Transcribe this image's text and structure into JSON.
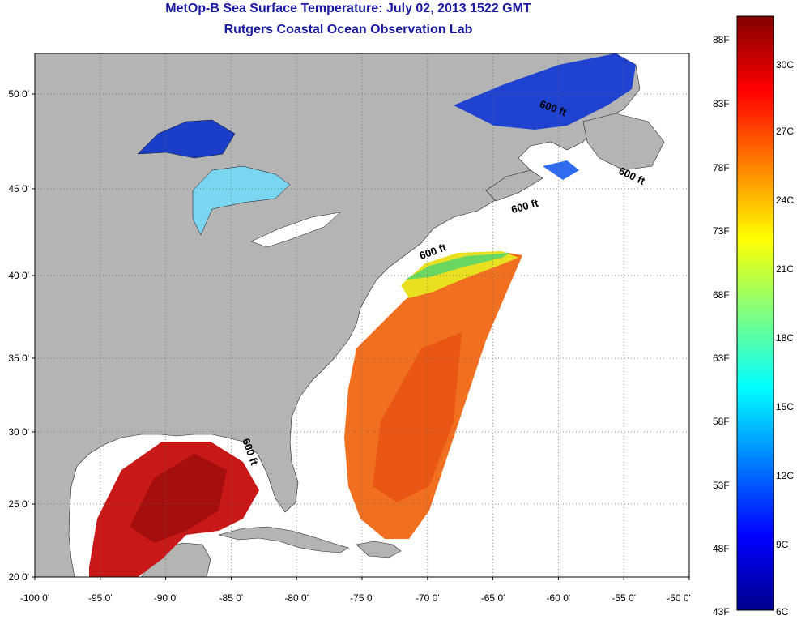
{
  "header": {
    "title": "MetOp-B Sea Surface Temperature:  July 02, 2013 1522 GMT",
    "subtitle": "Rutgers Coastal Ocean Observation Lab"
  },
  "map": {
    "lon_range": [
      -100,
      -50
    ],
    "lat_range": [
      20,
      52.5
    ],
    "lon_ticks": [
      "-100 0'",
      "-95 0'",
      "-90 0'",
      "-85 0'",
      "-80 0'",
      "-75 0'",
      "-70 0'",
      "-65 0'",
      "-60 0'",
      "-55 0'",
      "-50 0'"
    ],
    "lat_ticks": [
      "20 0'",
      "25 0'",
      "30 0'",
      "35 0'",
      "40 0'",
      "45 0'",
      "50 0'"
    ],
    "contour_labels": [
      {
        "text": "600 ft",
        "lon": -60.5,
        "lat": 48.9
      },
      {
        "text": "600 ft",
        "lon": -54.5,
        "lat": 44.7
      },
      {
        "text": "600 ft",
        "lon": -62.5,
        "lat": 42.8
      },
      {
        "text": "600 ft",
        "lon": -69.5,
        "lat": 40.0
      },
      {
        "text": "600 ft",
        "lon": -83.8,
        "lat": 27.7
      }
    ],
    "colors": {
      "land": "#b4b4b4",
      "ocean_nodata": "#ffffff",
      "grid": "#666666"
    }
  },
  "colorbar": {
    "fahrenheit": [
      "88F",
      "83F",
      "78F",
      "73F",
      "68F",
      "63F",
      "58F",
      "53F",
      "48F",
      "43F"
    ],
    "celsius": [
      "30C",
      "27C",
      "24C",
      "21C",
      "18C",
      "15C",
      "12C",
      "9C",
      "6C"
    ]
  }
}
